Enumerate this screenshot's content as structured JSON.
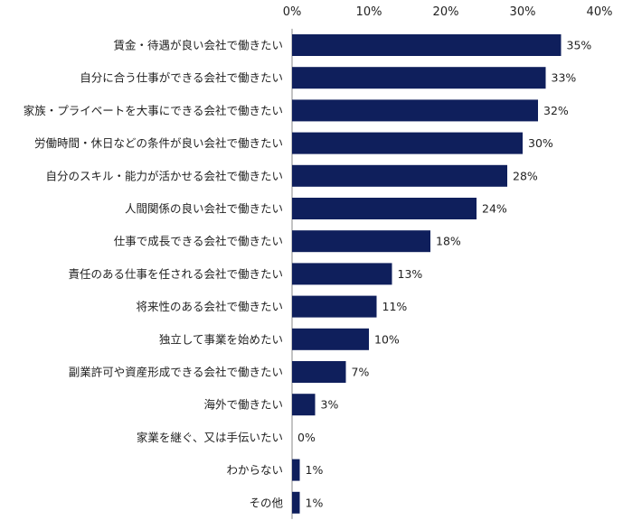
{
  "chart_data": {
    "type": "bar",
    "orientation": "horizontal",
    "categories": [
      "賃金・待遇が良い会社で働きたい",
      "自分に合う仕事ができる会社で働きたい",
      "家族・プライベートを大事にできる会社で働きたい",
      "労働時間・休日などの条件が良い会社で働きたい",
      "自分のスキル・能力が活かせる会社で働きたい",
      "人間関係の良い会社で働きたい",
      "仕事で成長できる会社で働きたい",
      "責任のある仕事を任される会社で働きたい",
      "将来性のある会社で働きたい",
      "独立して事業を始めたい",
      "副業許可や資産形成できる会社で働きたい",
      "海外で働きたい",
      "家業を継ぐ、又は手伝いたい",
      "わからない",
      "その他"
    ],
    "values": [
      35,
      33,
      32,
      30,
      28,
      24,
      18,
      13,
      11,
      10,
      7,
      3,
      0,
      1,
      1
    ],
    "value_labels": [
      "35%",
      "33%",
      "32%",
      "30%",
      "28%",
      "24%",
      "18%",
      "13%",
      "11%",
      "10%",
      "7%",
      "3%",
      "0%",
      "1%",
      "1%"
    ],
    "xlim": [
      0,
      40
    ],
    "ticks": [
      0,
      10,
      20,
      30,
      40
    ],
    "tick_labels": [
      "0%",
      "10%",
      "20%",
      "30%",
      "40%"
    ],
    "axis_position": "top",
    "grid": false,
    "bar_color": "#0f1f5c"
  }
}
